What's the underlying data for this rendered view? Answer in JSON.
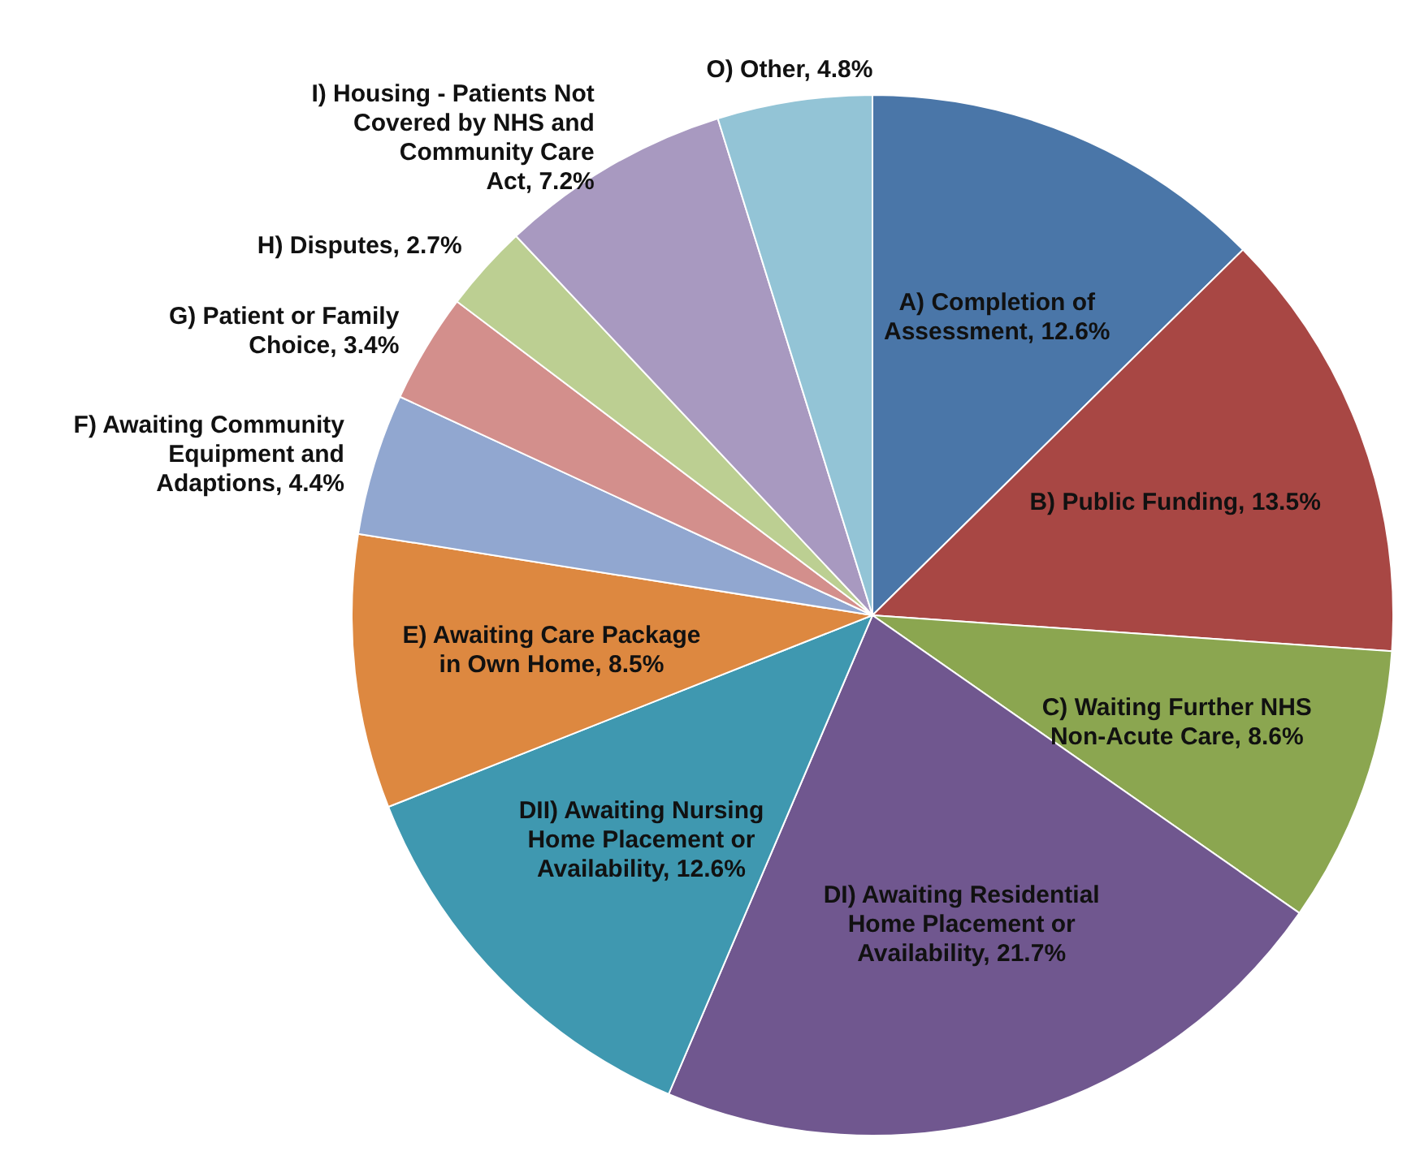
{
  "chart_data": {
    "type": "pie",
    "categories": [
      "A) Completion of Assessment",
      "B) Public Funding",
      "C) Waiting Further NHS Non-Acute Care",
      "DI) Awaiting Residential Home Placement or Availability",
      "DII) Awaiting Nursing Home Placement or Availability",
      "E) Awaiting Care Package in Own Home",
      "F) Awaiting Community Equipment and Adaptions",
      "G) Patient or Family Choice",
      "H) Disputes",
      "I) Housing - Patients Not Covered by NHS and Community Care Act",
      "O) Other"
    ],
    "value_labels": [
      "12.6%",
      "13.5%",
      "8.6%",
      "21.7%",
      "12.6%",
      "8.5%",
      "4.4%",
      "3.4%",
      "2.7%",
      "7.2%",
      "4.8%"
    ],
    "values": [
      12.6,
      13.5,
      8.6,
      21.7,
      12.6,
      8.5,
      4.4,
      3.4,
      2.7,
      7.2,
      4.8
    ],
    "colors": [
      "#4a76a8",
      "#a84744",
      "#8ba650",
      "#70578f",
      "#3f98b0",
      "#dd8840",
      "#91a7d0",
      "#d38f8c",
      "#bccf92",
      "#a899c0",
      "#93c4d6"
    ],
    "legend": false
  }
}
